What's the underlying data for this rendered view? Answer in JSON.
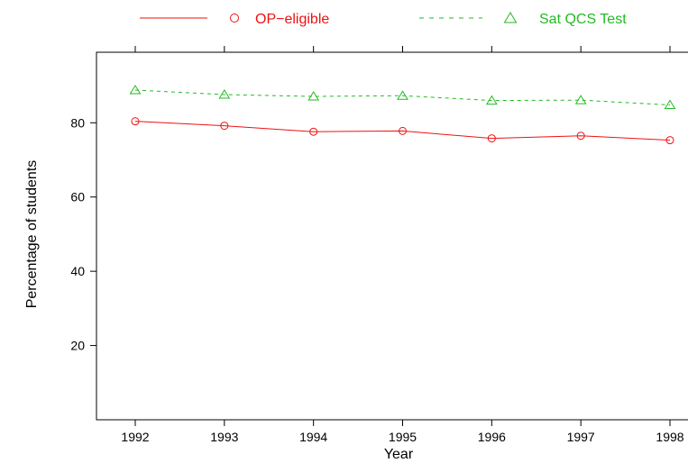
{
  "chart_data": {
    "type": "line",
    "title": "",
    "xlabel": "Year",
    "ylabel": "Percentage of students",
    "x": [
      1992,
      1993,
      1994,
      1995,
      1996,
      1997,
      1998
    ],
    "x_tick_labels": [
      "1992",
      "1993",
      "1994",
      "1995",
      "1996",
      "1997",
      "1998"
    ],
    "y_ticks": [
      20,
      40,
      60,
      80
    ],
    "y_tick_labels": [
      "20",
      "40",
      "60",
      "80"
    ],
    "xlim": [
      1992,
      1998
    ],
    "ylim": [
      0,
      99
    ],
    "grid": false,
    "legend_placement": "top",
    "series": [
      {
        "name": "OP−eligible",
        "color": "#ee1111",
        "line_style": "solid",
        "marker": "circle",
        "values": [
          80.4,
          79.2,
          77.6,
          77.8,
          75.8,
          76.5,
          75.3
        ]
      },
      {
        "name": "Sat QCS Test",
        "color": "#22bb22",
        "line_style": "dashed",
        "marker": "triangle",
        "values": [
          88.8,
          87.6,
          87.1,
          87.3,
          86.0,
          86.1,
          84.8
        ]
      }
    ]
  }
}
